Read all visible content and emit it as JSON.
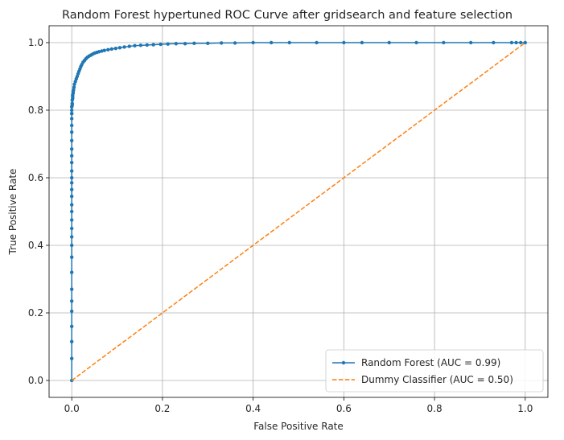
{
  "chart_data": {
    "type": "line",
    "title": "Random Forest hypertuned ROC Curve after gridsearch and feature selection",
    "xlabel": "False Positive Rate",
    "ylabel": "True Positive Rate",
    "xlim": [
      -0.05,
      1.05
    ],
    "ylim": [
      -0.05,
      1.05
    ],
    "x_ticks": [
      "0.0",
      "0.2",
      "0.4",
      "0.6",
      "0.8",
      "1.0"
    ],
    "y_ticks": [
      "0.0",
      "0.2",
      "0.4",
      "0.6",
      "0.8",
      "1.0"
    ],
    "grid": true,
    "legend_position": "lower-right",
    "series": [
      {
        "name": "Random Forest (AUC = 0.99)",
        "color": "#1f77b4",
        "style": "solid-with-dots",
        "x": [
          0.0,
          0.0,
          0.0,
          0.0,
          0.0,
          0.0,
          0.0,
          0.0,
          0.0,
          0.0,
          0.0,
          0.0,
          0.0,
          0.0,
          0.0,
          0.0,
          0.0,
          0.0,
          0.0,
          0.0,
          0.0,
          0.0,
          0.0,
          0.0,
          0.0,
          0.0,
          0.0,
          0.0,
          0.0,
          0.0,
          0.0,
          0.001,
          0.001,
          0.001,
          0.002,
          0.002,
          0.002,
          0.003,
          0.003,
          0.004,
          0.005,
          0.006,
          0.008,
          0.01,
          0.012,
          0.014,
          0.016,
          0.018,
          0.02,
          0.022,
          0.025,
          0.028,
          0.031,
          0.034,
          0.038,
          0.042,
          0.046,
          0.05,
          0.055,
          0.06,
          0.066,
          0.072,
          0.08,
          0.088,
          0.097,
          0.106,
          0.116,
          0.127,
          0.139,
          0.152,
          0.166,
          0.18,
          0.196,
          0.212,
          0.23,
          0.25,
          0.27,
          0.3,
          0.33,
          0.36,
          0.4,
          0.44,
          0.48,
          0.54,
          0.6,
          0.64,
          0.7,
          0.76,
          0.82,
          0.88,
          0.93,
          0.97,
          0.98,
          0.99,
          1.0
        ],
        "y": [
          0.0,
          0.065,
          0.115,
          0.16,
          0.205,
          0.235,
          0.27,
          0.32,
          0.365,
          0.4,
          0.425,
          0.45,
          0.475,
          0.5,
          0.52,
          0.545,
          0.565,
          0.585,
          0.6,
          0.62,
          0.645,
          0.665,
          0.685,
          0.71,
          0.735,
          0.755,
          0.775,
          0.79,
          0.79,
          0.8,
          0.81,
          0.815,
          0.82,
          0.83,
          0.835,
          0.84,
          0.845,
          0.85,
          0.855,
          0.86,
          0.868,
          0.877,
          0.885,
          0.893,
          0.9,
          0.908,
          0.915,
          0.922,
          0.929,
          0.935,
          0.942,
          0.947,
          0.952,
          0.956,
          0.96,
          0.963,
          0.966,
          0.969,
          0.971,
          0.973,
          0.975,
          0.977,
          0.979,
          0.981,
          0.983,
          0.985,
          0.987,
          0.989,
          0.991,
          0.992,
          0.993,
          0.994,
          0.995,
          0.996,
          0.997,
          0.997,
          0.998,
          0.998,
          0.999,
          0.999,
          1.0,
          1.0,
          1.0,
          1.0,
          1.0,
          1.0,
          1.0,
          1.0,
          1.0,
          1.0,
          1.0,
          1.0,
          1.0,
          1.0,
          1.0
        ]
      },
      {
        "name": "Dummy Classifier (AUC = 0.50)",
        "color": "#ff7f0e",
        "style": "dashed",
        "x": [
          0.0,
          1.0
        ],
        "y": [
          0.0,
          1.0
        ]
      }
    ]
  }
}
